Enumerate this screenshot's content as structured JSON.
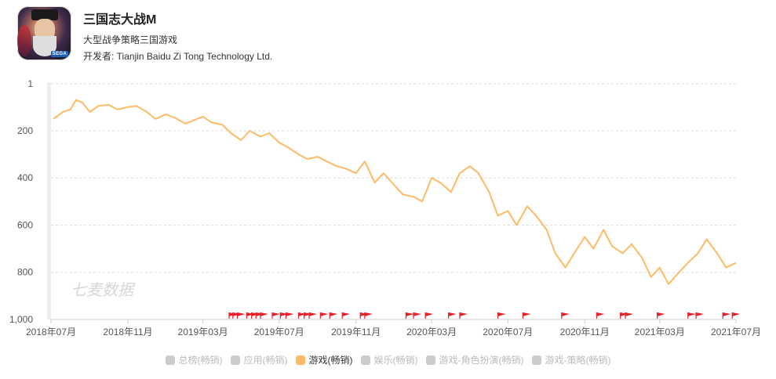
{
  "app": {
    "title": "三国志大战M",
    "subtitle": "大型战争策略三国游戏",
    "developer": "开发者: Tianjin Baidu Zi Tong Technology Ltd.",
    "icon_name": "game-app-icon",
    "icon_badge": "SEGA"
  },
  "watermark": "七麦数据",
  "legend": [
    {
      "label": "总榜(畅销)",
      "active": false
    },
    {
      "label": "应用(畅销)",
      "active": false
    },
    {
      "label": "游戏(畅销)",
      "active": true
    },
    {
      "label": "娱乐(畅销)",
      "active": false
    },
    {
      "label": "游戏-角色扮演(畅销)",
      "active": false
    },
    {
      "label": "游戏-策略(畅销)",
      "active": false
    }
  ],
  "colors": {
    "series": "#ffba66",
    "grid": "#dddddd",
    "flag": "#e8202a",
    "axis_text": "#555555",
    "inactive_legend": "#cccccc"
  },
  "chart_data": {
    "type": "line",
    "title": "",
    "xlabel": "",
    "ylabel": "",
    "y_inverted": true,
    "ylim": [
      1,
      1000
    ],
    "y_ticks": [
      1,
      200,
      400,
      600,
      800,
      1000
    ],
    "y_tick_labels": [
      "1",
      "200",
      "400",
      "600",
      "800",
      "1,000"
    ],
    "x_range": [
      "2018-07-01",
      "2021-07-01"
    ],
    "x_ticks": [
      "2018-07-01",
      "2018-11-01",
      "2019-03-01",
      "2019-07-01",
      "2019-11-01",
      "2020-03-01",
      "2020-07-01",
      "2020-11-01",
      "2021-03-01",
      "2021-07-01"
    ],
    "x_tick_labels": [
      "2018年07月",
      "2018年11月",
      "2019年03月",
      "2019年07月",
      "2019年11月",
      "2020年03月",
      "2020年07月",
      "2020年11月",
      "2021年03月",
      "2021年07月"
    ],
    "grid": true,
    "series": [
      {
        "name": "游戏(畅销)",
        "points": [
          [
            "2018-07-05",
            150
          ],
          [
            "2018-07-20",
            120
          ],
          [
            "2018-08-01",
            110
          ],
          [
            "2018-08-10",
            70
          ],
          [
            "2018-08-20",
            80
          ],
          [
            "2018-09-01",
            120
          ],
          [
            "2018-09-15",
            95
          ],
          [
            "2018-10-01",
            90
          ],
          [
            "2018-10-15",
            110
          ],
          [
            "2018-11-01",
            100
          ],
          [
            "2018-11-15",
            95
          ],
          [
            "2018-12-01",
            120
          ],
          [
            "2018-12-15",
            150
          ],
          [
            "2019-01-01",
            130
          ],
          [
            "2019-01-15",
            145
          ],
          [
            "2019-02-01",
            170
          ],
          [
            "2019-02-15",
            155
          ],
          [
            "2019-03-01",
            140
          ],
          [
            "2019-03-15",
            165
          ],
          [
            "2019-04-01",
            175
          ],
          [
            "2019-04-15",
            210
          ],
          [
            "2019-05-01",
            240
          ],
          [
            "2019-05-15",
            200
          ],
          [
            "2019-06-01",
            225
          ],
          [
            "2019-06-15",
            210
          ],
          [
            "2019-07-01",
            250
          ],
          [
            "2019-07-15",
            270
          ],
          [
            "2019-08-01",
            300
          ],
          [
            "2019-08-15",
            320
          ],
          [
            "2019-09-01",
            310
          ],
          [
            "2019-09-15",
            330
          ],
          [
            "2019-10-01",
            350
          ],
          [
            "2019-10-15",
            360
          ],
          [
            "2019-11-01",
            380
          ],
          [
            "2019-11-15",
            330
          ],
          [
            "2019-12-01",
            420
          ],
          [
            "2019-12-15",
            380
          ],
          [
            "2020-01-01",
            430
          ],
          [
            "2020-01-15",
            470
          ],
          [
            "2020-02-01",
            480
          ],
          [
            "2020-02-15",
            500
          ],
          [
            "2020-03-01",
            400
          ],
          [
            "2020-03-15",
            420
          ],
          [
            "2020-04-01",
            460
          ],
          [
            "2020-04-15",
            380
          ],
          [
            "2020-05-01",
            350
          ],
          [
            "2020-05-15",
            380
          ],
          [
            "2020-06-01",
            460
          ],
          [
            "2020-06-15",
            560
          ],
          [
            "2020-07-01",
            540
          ],
          [
            "2020-07-15",
            600
          ],
          [
            "2020-08-01",
            520
          ],
          [
            "2020-08-15",
            560
          ],
          [
            "2020-09-01",
            620
          ],
          [
            "2020-09-15",
            720
          ],
          [
            "2020-10-01",
            780
          ],
          [
            "2020-10-15",
            720
          ],
          [
            "2020-11-01",
            650
          ],
          [
            "2020-11-15",
            700
          ],
          [
            "2020-12-01",
            620
          ],
          [
            "2020-12-15",
            690
          ],
          [
            "2021-01-01",
            720
          ],
          [
            "2021-01-15",
            680
          ],
          [
            "2021-02-01",
            740
          ],
          [
            "2021-02-15",
            820
          ],
          [
            "2021-03-01",
            780
          ],
          [
            "2021-03-15",
            850
          ],
          [
            "2021-04-01",
            800
          ],
          [
            "2021-04-15",
            760
          ],
          [
            "2021-05-01",
            720
          ],
          [
            "2021-05-15",
            660
          ],
          [
            "2021-06-01",
            720
          ],
          [
            "2021-06-15",
            780
          ],
          [
            "2021-07-01",
            760
          ]
        ]
      }
    ],
    "flag_dates": [
      "2019-04-12",
      "2019-04-18",
      "2019-04-25",
      "2019-05-10",
      "2019-05-18",
      "2019-05-25",
      "2019-06-01",
      "2019-06-20",
      "2019-07-03",
      "2019-07-12",
      "2019-08-01",
      "2019-08-10",
      "2019-08-18",
      "2019-09-05",
      "2019-09-20",
      "2019-10-10",
      "2019-11-08",
      "2019-11-15",
      "2020-01-20",
      "2020-02-01",
      "2020-02-20",
      "2020-03-28",
      "2020-04-15",
      "2020-06-15",
      "2020-07-25",
      "2020-09-25",
      "2020-11-20",
      "2020-12-28",
      "2021-01-05",
      "2021-02-25",
      "2021-04-15",
      "2021-04-28",
      "2021-06-10",
      "2021-06-25"
    ]
  }
}
